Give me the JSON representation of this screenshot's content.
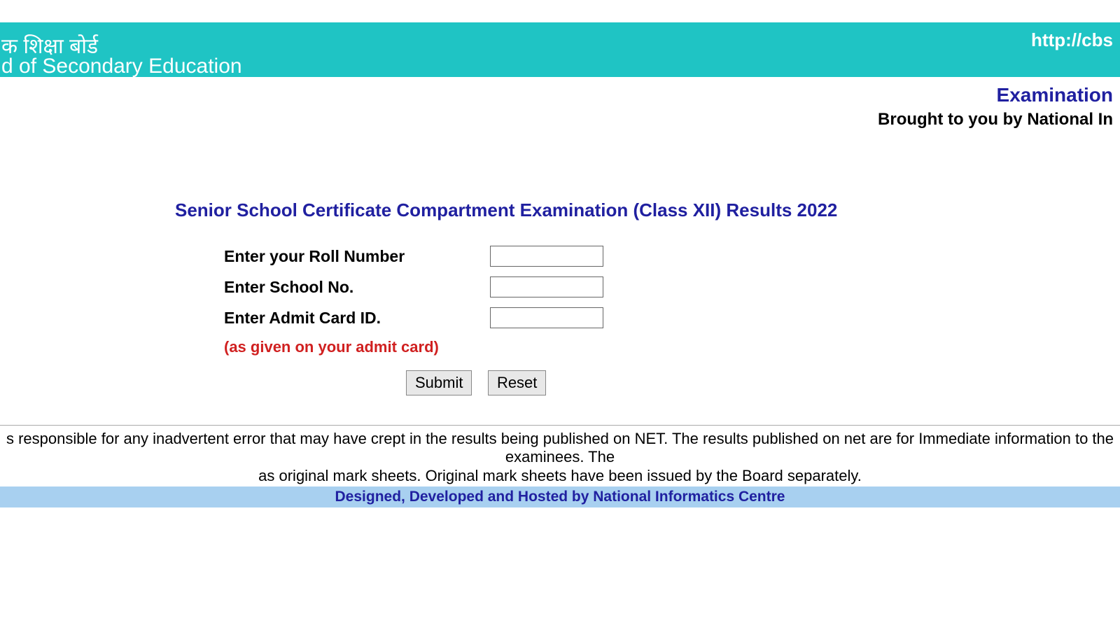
{
  "header": {
    "url": "http://cbs",
    "hindi_text": "क शिक्षा बोर्ड",
    "english_text": "d of Secondary Education",
    "banner_color": "#1fc4c4"
  },
  "subheader": {
    "title": "Examination",
    "tagline": "Brought to you by National In",
    "title_color": "#2020a0"
  },
  "form": {
    "title": "Senior School Certificate Compartment Examination (Class XII) Results 2022",
    "fields": [
      {
        "label": "Enter your Roll Number",
        "value": ""
      },
      {
        "label": "Enter School No.",
        "value": ""
      },
      {
        "label": "Enter Admit Card ID.",
        "value": ""
      }
    ],
    "note": "(as given on your admit card)",
    "note_color": "#d02020",
    "buttons": {
      "submit_label": "Submit",
      "reset_label": "Reset"
    }
  },
  "footer": {
    "disclaimer_line1": "s responsible for any inadvertent error that may have crept in the results being published on NET. The results published on net are for Immediate information to the examinees. The",
    "disclaimer_line2": "as original mark sheets. Original mark sheets have been issued by the Board separately.",
    "credit": "Designed, Developed and Hosted by National Informatics Centre",
    "credit_bg": "#a8d0f0",
    "credit_color": "#2020a0"
  }
}
